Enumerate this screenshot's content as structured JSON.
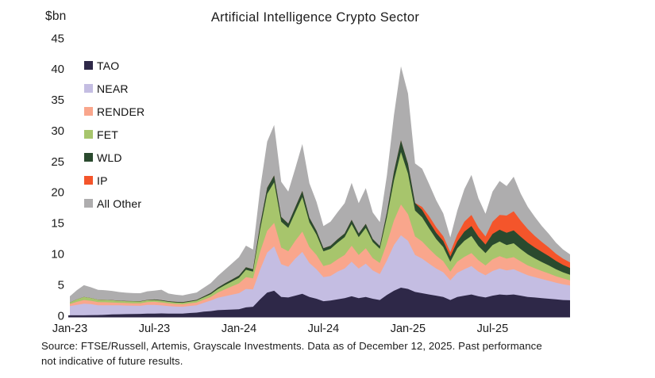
{
  "title": "Artificial Intelligence Crypto Sector",
  "y_axis_unit": "$bn",
  "source": {
    "line1": "Source: FTSE/Russell, Artemis, Grayscale Investments. Data as of December 12, 2025. Past performance",
    "line2": "not indicative of future results."
  },
  "colors": {
    "axis_line": "#2e2747",
    "text": "#1b1b1b",
    "background": "#ffffff"
  },
  "chart_data": {
    "type": "area",
    "subtype": "stacked",
    "title": "Artificial Intelligence Crypto Sector",
    "ylabel": "$bn",
    "xlabel": "",
    "ylim": [
      0,
      45
    ],
    "grid": false,
    "legend_position": "upper-left-inside",
    "x_description": "Semi-monthly samples from Jan-2023 through mid-Dec-2025 (72 points, 2 per month)",
    "x_ticks": [
      {
        "label": "Jan-23",
        "index": 0
      },
      {
        "label": "Jul-23",
        "index": 12
      },
      {
        "label": "Jan-24",
        "index": 24
      },
      {
        "label": "Jul-24",
        "index": 36
      },
      {
        "label": "Jan-25",
        "index": 48
      },
      {
        "label": "Jul-25",
        "index": 60
      }
    ],
    "y_ticks": [
      0,
      5,
      10,
      15,
      20,
      25,
      30,
      35,
      40,
      45
    ],
    "series": [
      {
        "name": "TAO",
        "color": "#2e2848",
        "values": [
          0,
          0,
          0,
          0.02,
          0.05,
          0.1,
          0.15,
          0.18,
          0.2,
          0.22,
          0.25,
          0.3,
          0.3,
          0.32,
          0.3,
          0.28,
          0.3,
          0.38,
          0.45,
          0.6,
          0.7,
          0.85,
          0.9,
          0.95,
          1.0,
          1.3,
          1.4,
          2.6,
          3.7,
          4.0,
          3.0,
          2.9,
          3.2,
          3.5,
          3.0,
          2.7,
          2.3,
          2.4,
          2.6,
          2.8,
          3.1,
          2.8,
          3.0,
          2.7,
          2.5,
          3.3,
          4.0,
          4.5,
          4.3,
          3.8,
          3.6,
          3.4,
          3.2,
          3.0,
          2.5,
          3.0,
          3.2,
          3.4,
          3.1,
          2.9,
          3.2,
          3.4,
          3.3,
          3.4,
          3.2,
          3.0,
          2.9,
          2.8,
          2.7,
          2.6,
          2.5,
          2.45
        ]
      },
      {
        "name": "NEAR",
        "color": "#c4bde2",
        "values": [
          1.5,
          1.7,
          1.9,
          1.8,
          1.6,
          1.55,
          1.5,
          1.45,
          1.4,
          1.35,
          1.3,
          1.4,
          1.4,
          1.3,
          1.2,
          1.15,
          1.1,
          1.15,
          1.2,
          1.45,
          1.7,
          2.0,
          2.2,
          2.4,
          2.6,
          3.0,
          2.8,
          4.8,
          6.5,
          7.2,
          5.3,
          5.0,
          6.0,
          6.8,
          5.5,
          4.8,
          3.9,
          4.0,
          4.5,
          4.8,
          5.6,
          4.8,
          5.4,
          4.6,
          4.2,
          5.6,
          7.4,
          8.5,
          7.8,
          6.0,
          5.6,
          5.0,
          4.4,
          4.0,
          3.2,
          3.9,
          4.3,
          4.6,
          4.0,
          3.6,
          4.0,
          4.2,
          4.0,
          4.1,
          3.8,
          3.5,
          3.3,
          3.1,
          2.9,
          2.7,
          2.55,
          2.4
        ]
      },
      {
        "name": "RENDER",
        "color": "#f9a68c",
        "values": [
          0.35,
          0.5,
          0.6,
          0.55,
          0.5,
          0.48,
          0.45,
          0.42,
          0.4,
          0.4,
          0.4,
          0.45,
          0.5,
          0.48,
          0.45,
          0.42,
          0.4,
          0.42,
          0.45,
          0.5,
          0.6,
          0.85,
          1.1,
          1.35,
          1.6,
          1.9,
          1.8,
          2.9,
          3.5,
          3.8,
          2.7,
          2.5,
          2.9,
          3.3,
          2.6,
          2.3,
          1.8,
          1.9,
          2.0,
          2.2,
          2.6,
          2.2,
          2.5,
          2.0,
          1.8,
          2.8,
          4.0,
          5.0,
          4.3,
          3.0,
          2.8,
          2.4,
          2.1,
          1.8,
          1.4,
          1.8,
          2.0,
          2.1,
          1.85,
          1.6,
          1.9,
          2.0,
          1.9,
          1.95,
          1.75,
          1.6,
          1.45,
          1.3,
          1.2,
          1.05,
          0.95,
          0.85
        ]
      },
      {
        "name": "FET",
        "color": "#a7c56c",
        "values": [
          0.25,
          0.4,
          0.5,
          0.45,
          0.4,
          0.38,
          0.35,
          0.32,
          0.3,
          0.3,
          0.3,
          0.3,
          0.3,
          0.28,
          0.25,
          0.25,
          0.25,
          0.27,
          0.3,
          0.38,
          0.45,
          0.55,
          0.7,
          0.8,
          0.9,
          1.2,
          1.1,
          3.6,
          6.0,
          6.6,
          4.2,
          3.8,
          4.6,
          5.6,
          4.0,
          3.3,
          2.4,
          2.5,
          2.7,
          2.9,
          3.5,
          2.9,
          3.3,
          2.6,
          2.3,
          4.2,
          6.5,
          8.5,
          6.6,
          4.2,
          3.9,
          3.3,
          2.7,
          2.3,
          1.6,
          2.2,
          2.6,
          2.8,
          2.3,
          2.0,
          2.3,
          2.4,
          2.2,
          2.25,
          2.0,
          1.8,
          1.6,
          1.45,
          1.3,
          1.15,
          1.0,
          0.9
        ]
      },
      {
        "name": "WLD",
        "color": "#2a4a2e",
        "values": [
          0,
          0,
          0,
          0,
          0,
          0.01,
          0.02,
          0.02,
          0.03,
          0.04,
          0.05,
          0.06,
          0.08,
          0.09,
          0.1,
          0.1,
          0.1,
          0.11,
          0.12,
          0.16,
          0.2,
          0.25,
          0.3,
          0.32,
          0.35,
          0.42,
          0.38,
          0.8,
          1.0,
          1.1,
          0.78,
          0.7,
          0.85,
          1.0,
          0.75,
          0.65,
          0.5,
          0.5,
          0.55,
          0.6,
          0.7,
          0.6,
          0.65,
          0.5,
          0.45,
          0.8,
          1.4,
          1.9,
          1.6,
          1.25,
          1.2,
          1.1,
          1.0,
          0.95,
          0.85,
          1.1,
          1.5,
          1.6,
          1.5,
          1.4,
          1.8,
          1.9,
          2.0,
          2.1,
          2.0,
          1.9,
          1.75,
          1.65,
          1.5,
          1.35,
          1.2,
          1.1
        ]
      },
      {
        "name": "IP",
        "color": "#f4552b",
        "values": [
          0,
          0,
          0,
          0,
          0,
          0,
          0,
          0,
          0,
          0,
          0,
          0,
          0,
          0,
          0,
          0,
          0,
          0,
          0,
          0,
          0,
          0,
          0,
          0,
          0,
          0,
          0,
          0,
          0,
          0,
          0,
          0,
          0,
          0,
          0,
          0,
          0,
          0,
          0,
          0,
          0,
          0,
          0,
          0,
          0,
          0,
          0,
          0,
          0,
          0,
          0.5,
          0.9,
          0.9,
          0.8,
          0.7,
          1.1,
          1.6,
          1.8,
          1.5,
          1.3,
          2.0,
          2.4,
          2.8,
          3.1,
          2.6,
          2.2,
          1.9,
          1.6,
          1.4,
          1.15,
          1.0,
          0.9
        ]
      },
      {
        "name": "All Other",
        "color": "#aeadae",
        "values": [
          1.0,
          1.5,
          1.9,
          1.75,
          1.6,
          1.55,
          1.5,
          1.4,
          1.35,
          1.3,
          1.3,
          1.4,
          1.45,
          1.7,
          1.25,
          1.15,
          1.1,
          1.15,
          1.2,
          1.4,
          1.6,
          1.9,
          2.2,
          2.6,
          3.0,
          3.5,
          3.2,
          5.8,
          7.5,
          8.2,
          5.7,
          5.2,
          6.3,
          7.6,
          5.6,
          4.7,
          3.6,
          3.9,
          4.4,
          4.9,
          6.0,
          4.9,
          5.8,
          4.3,
          3.9,
          6.0,
          9.2,
          12.0,
          11.4,
          6.4,
          6.2,
          5.2,
          4.4,
          3.7,
          2.4,
          3.9,
          5.3,
          6.5,
          4.75,
          3.7,
          4.9,
          5.5,
          4.8,
          5.6,
          4.4,
          3.6,
          3.1,
          2.6,
          2.2,
          1.8,
          1.5,
          1.3
        ]
      }
    ]
  }
}
